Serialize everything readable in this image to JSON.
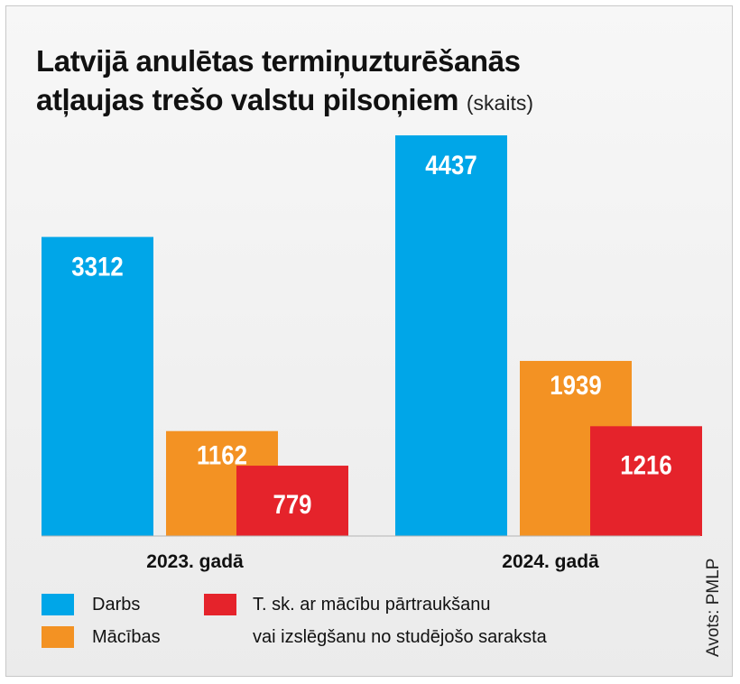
{
  "title": {
    "line1": "Latvijā anulētas termiņuzturēšanās",
    "line2": "atļaujas trešo valstu pilsoņiem",
    "unit": "(skaits)"
  },
  "source": "Avots: PMLP",
  "chart_data": {
    "type": "bar",
    "categories": [
      "2023. gadā",
      "2024. gadā"
    ],
    "series": [
      {
        "name": "Darbs",
        "values": [
          3312,
          4437
        ],
        "color": "#00a6e8"
      },
      {
        "name": "Mācības",
        "values": [
          1162,
          1939
        ],
        "color": "#f39223"
      },
      {
        "name": "T. sk. ar mācību pārtraukšanu vai izslēgšanu no studējošo saraksta",
        "values": [
          779,
          1216
        ],
        "color": "#e5232b"
      }
    ],
    "ylim": [
      0,
      4437
    ],
    "grid": false,
    "legend_position": "bottom"
  },
  "legend": [
    {
      "label": "Darbs",
      "color": "#00a6e8"
    },
    {
      "label": "Mācības",
      "color": "#f39223"
    },
    {
      "label_line1": "T. sk. ar mācību pārtraukšanu",
      "label_line2": "vai izslēgšanu no studējošo saraksta",
      "color": "#e5232b"
    }
  ]
}
